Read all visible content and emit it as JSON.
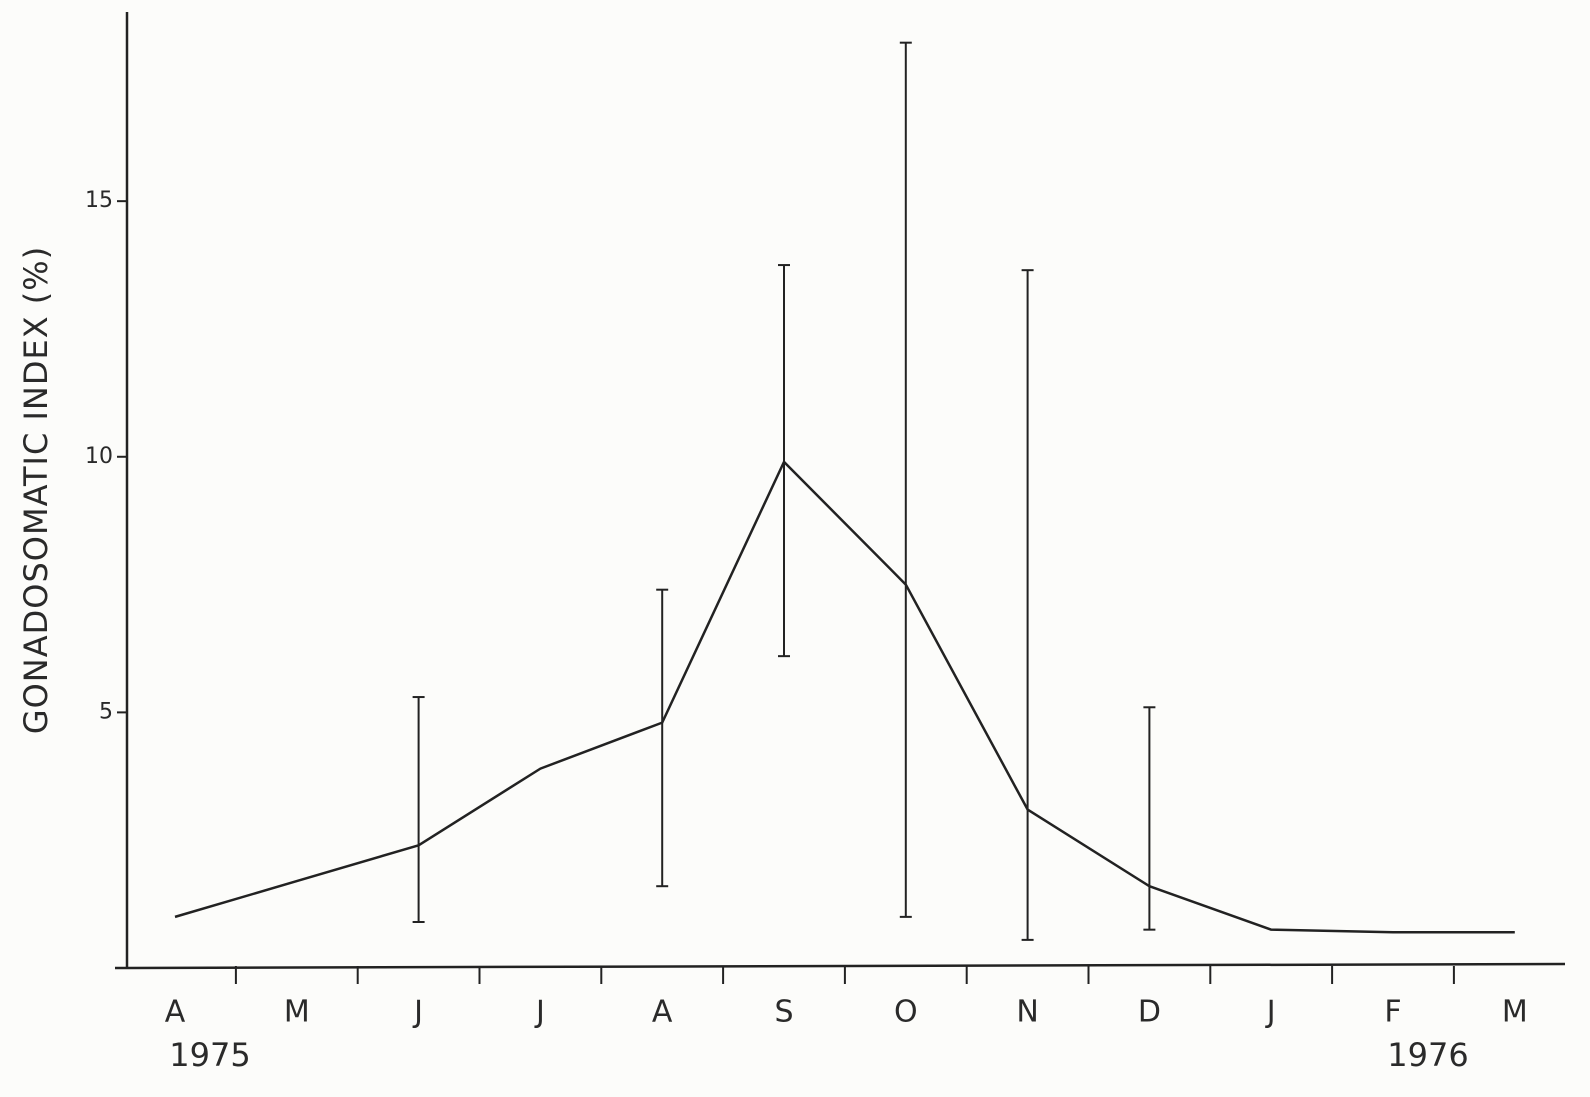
{
  "chart_data": {
    "type": "line",
    "y_label": "GONADOSOMATIC  INDEX (%)",
    "categories": [
      "A",
      "M",
      "J",
      "J",
      "A",
      "S",
      "O",
      "N",
      "D",
      "J",
      "F",
      "M"
    ],
    "year_labels": [
      "1975",
      "1976"
    ],
    "series": [
      {
        "color": "#222222",
        "values": [
          1.0,
          1.7,
          2.4,
          3.9,
          4.8,
          9.9,
          7.5,
          3.1,
          1.6,
          0.75,
          0.7,
          0.7
        ],
        "lower": [
          null,
          null,
          0.9,
          null,
          1.6,
          6.1,
          1.0,
          0.55,
          0.75,
          null,
          null,
          null
        ],
        "upper": [
          null,
          null,
          5.3,
          null,
          7.4,
          13.75,
          18.1,
          13.65,
          5.1,
          null,
          null,
          null
        ]
      }
    ],
    "ylim": [
      0,
      18.7
    ],
    "yticks": [
      5,
      10,
      15
    ],
    "grid": false
  }
}
